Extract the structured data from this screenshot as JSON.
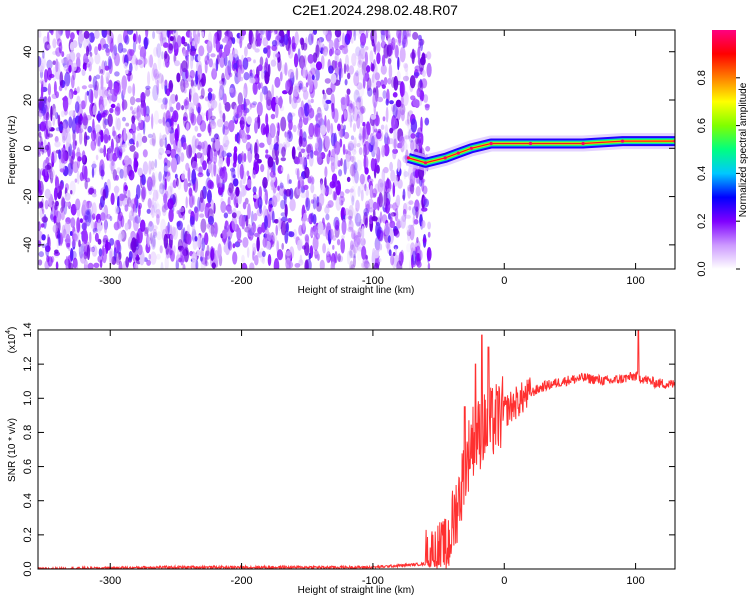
{
  "title": "C2E1.2024.298.02.48.R07",
  "chart_data": [
    {
      "type": "heatmap",
      "xlabel": "Height of straight line (km)",
      "ylabel": "Frequency (Hz)",
      "xlim": [
        -355,
        130
      ],
      "ylim": [
        -50,
        49
      ],
      "xticks": [
        "-300",
        "-200",
        "-100",
        "0",
        "100"
      ],
      "xtick_values": [
        -300,
        -200,
        -100,
        0,
        100
      ],
      "yticks": [
        "-40",
        "-20",
        "0",
        "20",
        "40"
      ],
      "ytick_values": [
        -40,
        -20,
        0,
        20,
        40
      ],
      "colorbar": {
        "label": "Normalized spectral amplitude",
        "range": [
          0,
          1
        ],
        "ticks": [
          "0.0",
          "0.2",
          "0.4",
          "0.6",
          "0.8"
        ],
        "tick_values": [
          0,
          0.2,
          0.4,
          0.6,
          0.8
        ],
        "colors": [
          "#ffffff",
          "#cc99ff",
          "#7f00ff",
          "#0000ff",
          "#00c8ff",
          "#00ff80",
          "#80ff00",
          "#ffff00",
          "#ff8000",
          "#ff0000",
          "#ff0080"
        ]
      },
      "noise_region_x": [
        -355,
        -57
      ],
      "signal_track": [
        {
          "x": -73,
          "y": -4
        },
        {
          "x": -60,
          "y": -6
        },
        {
          "x": -45,
          "y": -4
        },
        {
          "x": -35,
          "y": -2
        },
        {
          "x": -25,
          "y": 0
        },
        {
          "x": -10,
          "y": 2
        },
        {
          "x": 20,
          "y": 2
        },
        {
          "x": 60,
          "y": 2
        },
        {
          "x": 90,
          "y": 3
        },
        {
          "x": 130,
          "y": 3
        }
      ]
    },
    {
      "type": "line",
      "xlabel": "Height of straight line (km)",
      "ylabel": "SNR (10 * v/v)",
      "y_multiplier": "(x10",
      "y_multiplier_exp": "4",
      "xlim": [
        -355,
        130
      ],
      "ylim": [
        0,
        1.4
      ],
      "xticks": [
        "-300",
        "-200",
        "-100",
        "0",
        "100"
      ],
      "xtick_values": [
        -300,
        -200,
        -100,
        0,
        100
      ],
      "yticks": [
        "0.0",
        "0.2",
        "0.4",
        "0.6",
        "0.8",
        "1.0",
        "1.2",
        "1.4"
      ],
      "ytick_values": [
        0,
        0.2,
        0.4,
        0.6,
        0.8,
        1.0,
        1.2,
        1.4
      ],
      "line_color": "#ff3030",
      "series_points": [
        {
          "x": -355,
          "y": 0.0
        },
        {
          "x": -260,
          "y": 0.01
        },
        {
          "x": -100,
          "y": 0.01
        },
        {
          "x": -60,
          "y": 0.03
        },
        {
          "x": -45,
          "y": 0.08
        },
        {
          "x": -38,
          "y": 0.3
        },
        {
          "x": -32,
          "y": 0.5
        },
        {
          "x": -25,
          "y": 0.75
        },
        {
          "x": -18,
          "y": 0.8
        },
        {
          "x": -10,
          "y": 0.85
        },
        {
          "x": 0,
          "y": 0.92
        },
        {
          "x": 10,
          "y": 0.98
        },
        {
          "x": 20,
          "y": 1.03
        },
        {
          "x": 30,
          "y": 1.07
        },
        {
          "x": 45,
          "y": 1.1
        },
        {
          "x": 60,
          "y": 1.12
        },
        {
          "x": 80,
          "y": 1.1
        },
        {
          "x": 100,
          "y": 1.13
        },
        {
          "x": 115,
          "y": 1.09
        },
        {
          "x": 130,
          "y": 1.08
        }
      ],
      "spikes": [
        {
          "x": -30,
          "y": 0.95
        },
        {
          "x": -22,
          "y": 1.2
        },
        {
          "x": -17,
          "y": 1.37
        },
        {
          "x": -12,
          "y": 1.3
        },
        {
          "x": 102,
          "y": 1.41
        }
      ]
    }
  ]
}
